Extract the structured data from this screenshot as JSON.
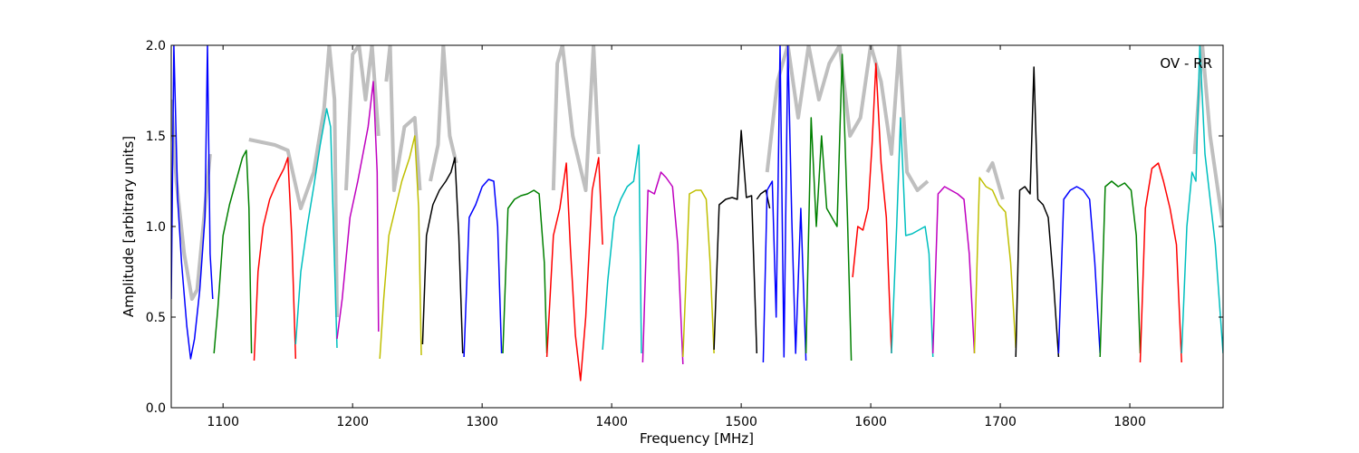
{
  "chart_data": {
    "type": "line",
    "title": "",
    "annotation": "OV - RR",
    "xlabel": "Frequency [MHz]",
    "ylabel": "Amplitude [arbitrary units]",
    "xlim": [
      1060,
      1872
    ],
    "ylim": [
      0.0,
      2.0
    ],
    "xticks": [
      1100,
      1200,
      1300,
      1400,
      1500,
      1600,
      1700,
      1800
    ],
    "yticks": [
      0.0,
      0.5,
      1.0,
      1.5,
      2.0
    ],
    "ytick_labels": [
      "0.0",
      "0.5",
      "1.0",
      "1.5",
      "2.0"
    ],
    "grid": false,
    "background_series_color": "#bfbfbf",
    "bands": [
      {
        "color": "#0000ff",
        "x": [
          1060,
          1062,
          1065,
          1068,
          1072,
          1075,
          1078,
          1082,
          1086,
          1088,
          1090,
          1092
        ],
        "y": [
          0.6,
          2.0,
          1.15,
          0.8,
          0.45,
          0.27,
          0.38,
          0.65,
          1.05,
          2.0,
          0.85,
          0.6
        ]
      },
      {
        "color": "#008000",
        "x": [
          1093,
          1096,
          1100,
          1105,
          1110,
          1115,
          1118,
          1120,
          1122
        ],
        "y": [
          0.3,
          0.55,
          0.95,
          1.12,
          1.25,
          1.38,
          1.42,
          1.1,
          0.3
        ]
      },
      {
        "color": "#ff0000",
        "x": [
          1124,
          1127,
          1131,
          1136,
          1142,
          1147,
          1150,
          1153,
          1156
        ],
        "y": [
          0.26,
          0.75,
          1.0,
          1.15,
          1.25,
          1.32,
          1.38,
          0.95,
          0.27
        ]
      },
      {
        "color": "#00bfbf",
        "x": [
          1156,
          1160,
          1165,
          1170,
          1175,
          1180,
          1183,
          1186,
          1188
        ],
        "y": [
          0.35,
          0.75,
          1.0,
          1.22,
          1.45,
          1.65,
          1.55,
          0.8,
          0.33
        ]
      },
      {
        "color": "#bf00bf",
        "x": [
          1188,
          1192,
          1198,
          1204,
          1208,
          1212,
          1216,
          1219,
          1220
        ],
        "y": [
          0.38,
          0.6,
          1.05,
          1.25,
          1.4,
          1.55,
          1.8,
          1.3,
          0.42
        ]
      },
      {
        "color": "#bfbf00",
        "x": [
          1221,
          1224,
          1228,
          1233,
          1238,
          1244,
          1248,
          1251,
          1253
        ],
        "y": [
          0.27,
          0.6,
          0.95,
          1.1,
          1.25,
          1.38,
          1.5,
          1.1,
          0.29
        ]
      },
      {
        "color": "#000000",
        "x": [
          1254,
          1257,
          1262,
          1267,
          1272,
          1276,
          1279,
          1282,
          1285
        ],
        "y": [
          0.35,
          0.95,
          1.12,
          1.2,
          1.25,
          1.3,
          1.38,
          0.95,
          0.3
        ]
      },
      {
        "color": "#0000ff",
        "x": [
          1286,
          1290,
          1295,
          1300,
          1305,
          1309,
          1312,
          1315
        ],
        "y": [
          0.28,
          1.05,
          1.12,
          1.22,
          1.26,
          1.25,
          1.0,
          0.3
        ]
      },
      {
        "color": "#008000",
        "x": [
          1316,
          1320,
          1325,
          1330,
          1335,
          1340,
          1344,
          1348,
          1350
        ],
        "y": [
          0.3,
          1.1,
          1.15,
          1.17,
          1.18,
          1.2,
          1.18,
          0.8,
          0.3
        ]
      },
      {
        "color": "#ff0000",
        "x": [
          1350,
          1355,
          1360,
          1365,
          1368,
          1372,
          1376,
          1380,
          1385,
          1390,
          1393
        ],
        "y": [
          0.28,
          0.95,
          1.1,
          1.35,
          0.9,
          0.4,
          0.15,
          0.5,
          1.2,
          1.38,
          0.9
        ]
      },
      {
        "color": "#00bfbf",
        "x": [
          1393,
          1397,
          1402,
          1407,
          1412,
          1417,
          1421,
          1423
        ],
        "y": [
          0.32,
          0.7,
          1.05,
          1.15,
          1.22,
          1.25,
          1.45,
          0.3
        ]
      },
      {
        "color": "#bf00bf",
        "x": [
          1424,
          1428,
          1433,
          1438,
          1442,
          1447,
          1451,
          1455
        ],
        "y": [
          0.25,
          1.2,
          1.18,
          1.3,
          1.27,
          1.22,
          0.9,
          0.24
        ]
      },
      {
        "color": "#bfbf00",
        "x": [
          1455,
          1460,
          1465,
          1469,
          1473,
          1476,
          1479
        ],
        "y": [
          0.28,
          1.18,
          1.2,
          1.2,
          1.15,
          0.8,
          0.3
        ]
      },
      {
        "color": "#000000",
        "x": [
          1479,
          1483,
          1488,
          1493,
          1497,
          1500,
          1504,
          1508,
          1512
        ],
        "y": [
          0.32,
          1.12,
          1.15,
          1.16,
          1.15,
          1.53,
          1.16,
          1.17,
          0.3
        ]
      },
      {
        "color": "#000000",
        "x": [
          1512,
          1515,
          1519,
          1522
        ],
        "y": [
          1.15,
          1.18,
          1.2,
          1.1
        ]
      },
      {
        "color": "#0000ff",
        "x": [
          1517,
          1520,
          1524,
          1527,
          1530,
          1533,
          1536,
          1539,
          1542,
          1546,
          1550
        ],
        "y": [
          0.25,
          1.2,
          1.25,
          0.5,
          2.0,
          0.28,
          2.0,
          1.05,
          0.3,
          1.1,
          0.26
        ]
      },
      {
        "color": "#008000",
        "x": [
          1550,
          1554,
          1558,
          1562,
          1566,
          1570,
          1574,
          1578,
          1582,
          1585
        ],
        "y": [
          0.3,
          1.6,
          1.0,
          1.5,
          1.1,
          1.05,
          1.0,
          1.95,
          1.05,
          0.26
        ]
      },
      {
        "color": "#ff0000",
        "x": [
          1586,
          1590,
          1594,
          1598,
          1601,
          1604,
          1608,
          1612,
          1616
        ],
        "y": [
          0.72,
          1.0,
          0.98,
          1.1,
          1.45,
          1.9,
          1.35,
          1.05,
          0.3
        ]
      },
      {
        "color": "#00bfbf",
        "x": [
          1616,
          1620,
          1623,
          1627,
          1632,
          1637,
          1642,
          1645,
          1648
        ],
        "y": [
          0.3,
          1.0,
          1.6,
          0.95,
          0.96,
          0.98,
          1.0,
          0.85,
          0.28
        ]
      },
      {
        "color": "#bf00bf",
        "x": [
          1648,
          1652,
          1657,
          1662,
          1667,
          1672,
          1676,
          1680
        ],
        "y": [
          0.3,
          1.18,
          1.22,
          1.2,
          1.18,
          1.15,
          0.85,
          0.3
        ]
      },
      {
        "color": "#bfbf00",
        "x": [
          1680,
          1684,
          1689,
          1694,
          1699,
          1704,
          1708,
          1712
        ],
        "y": [
          0.3,
          1.27,
          1.22,
          1.2,
          1.12,
          1.08,
          0.8,
          0.33
        ]
      },
      {
        "color": "#000000",
        "x": [
          1712,
          1715,
          1719,
          1723,
          1726,
          1729,
          1733,
          1737,
          1741,
          1745
        ],
        "y": [
          0.28,
          1.2,
          1.22,
          1.18,
          1.88,
          1.15,
          1.12,
          1.05,
          0.7,
          0.28
        ]
      },
      {
        "color": "#0000ff",
        "x": [
          1745,
          1749,
          1754,
          1759,
          1764,
          1769,
          1773,
          1777
        ],
        "y": [
          0.3,
          1.15,
          1.2,
          1.22,
          1.2,
          1.15,
          0.8,
          0.3
        ]
      },
      {
        "color": "#008000",
        "x": [
          1777,
          1781,
          1786,
          1791,
          1796,
          1801,
          1805,
          1808
        ],
        "y": [
          0.28,
          1.22,
          1.25,
          1.22,
          1.24,
          1.2,
          0.95,
          0.3
        ]
      },
      {
        "color": "#ff0000",
        "x": [
          1808,
          1812,
          1817,
          1822,
          1826,
          1831,
          1836,
          1840
        ],
        "y": [
          0.25,
          1.1,
          1.32,
          1.35,
          1.25,
          1.1,
          0.9,
          0.25
        ]
      },
      {
        "color": "#00bfbf",
        "x": [
          1840,
          1844,
          1848,
          1851,
          1854,
          1858,
          1862,
          1866,
          1870,
          1872
        ],
        "y": [
          0.3,
          1.0,
          1.3,
          1.25,
          2.0,
          1.4,
          1.15,
          0.9,
          0.5,
          0.3
        ]
      }
    ],
    "background_series": [
      {
        "x": [
          1060,
          1064,
          1070,
          1076,
          1080,
          1086,
          1090
        ],
        "y": [
          1.7,
          1.25,
          0.85,
          0.6,
          0.65,
          1.1,
          1.4
        ]
      },
      {
        "x": [
          1120,
          1140,
          1150,
          1160,
          1170,
          1178,
          1182,
          1186,
          1188
        ],
        "y": [
          1.48,
          1.45,
          1.42,
          1.1,
          1.3,
          1.65,
          2.0,
          1.7,
          0.5
        ]
      },
      {
        "x": [
          1195,
          1200,
          1205,
          1210,
          1215,
          1220
        ],
        "y": [
          1.2,
          1.95,
          2.0,
          1.7,
          2.0,
          1.5
        ]
      },
      {
        "x": [
          1226,
          1229,
          1232,
          1240,
          1248,
          1252
        ],
        "y": [
          1.8,
          2.0,
          1.2,
          1.55,
          1.6,
          1.2
        ]
      },
      {
        "x": [
          1260,
          1266,
          1270,
          1275,
          1280
        ],
        "y": [
          1.25,
          1.45,
          2.0,
          1.5,
          1.35
        ]
      },
      {
        "x": [
          1355,
          1358,
          1362,
          1370,
          1380,
          1386,
          1390
        ],
        "y": [
          1.2,
          1.9,
          2.0,
          1.5,
          1.2,
          2.0,
          1.4
        ]
      },
      {
        "x": [
          1520,
          1528,
          1536,
          1544,
          1552,
          1560,
          1568,
          1576,
          1584,
          1592,
          1600,
          1608,
          1616,
          1622,
          1628,
          1636,
          1644
        ],
        "y": [
          1.3,
          1.8,
          2.0,
          1.6,
          2.0,
          1.7,
          1.9,
          2.0,
          1.5,
          1.6,
          2.0,
          1.8,
          1.4,
          2.0,
          1.3,
          1.2,
          1.25
        ]
      },
      {
        "x": [
          1690,
          1694,
          1698,
          1702
        ],
        "y": [
          1.3,
          1.35,
          1.25,
          1.15
        ]
      },
      {
        "x": [
          1850,
          1856,
          1862,
          1868,
          1872
        ],
        "y": [
          1.4,
          2.0,
          1.5,
          1.2,
          1.0
        ]
      }
    ]
  }
}
